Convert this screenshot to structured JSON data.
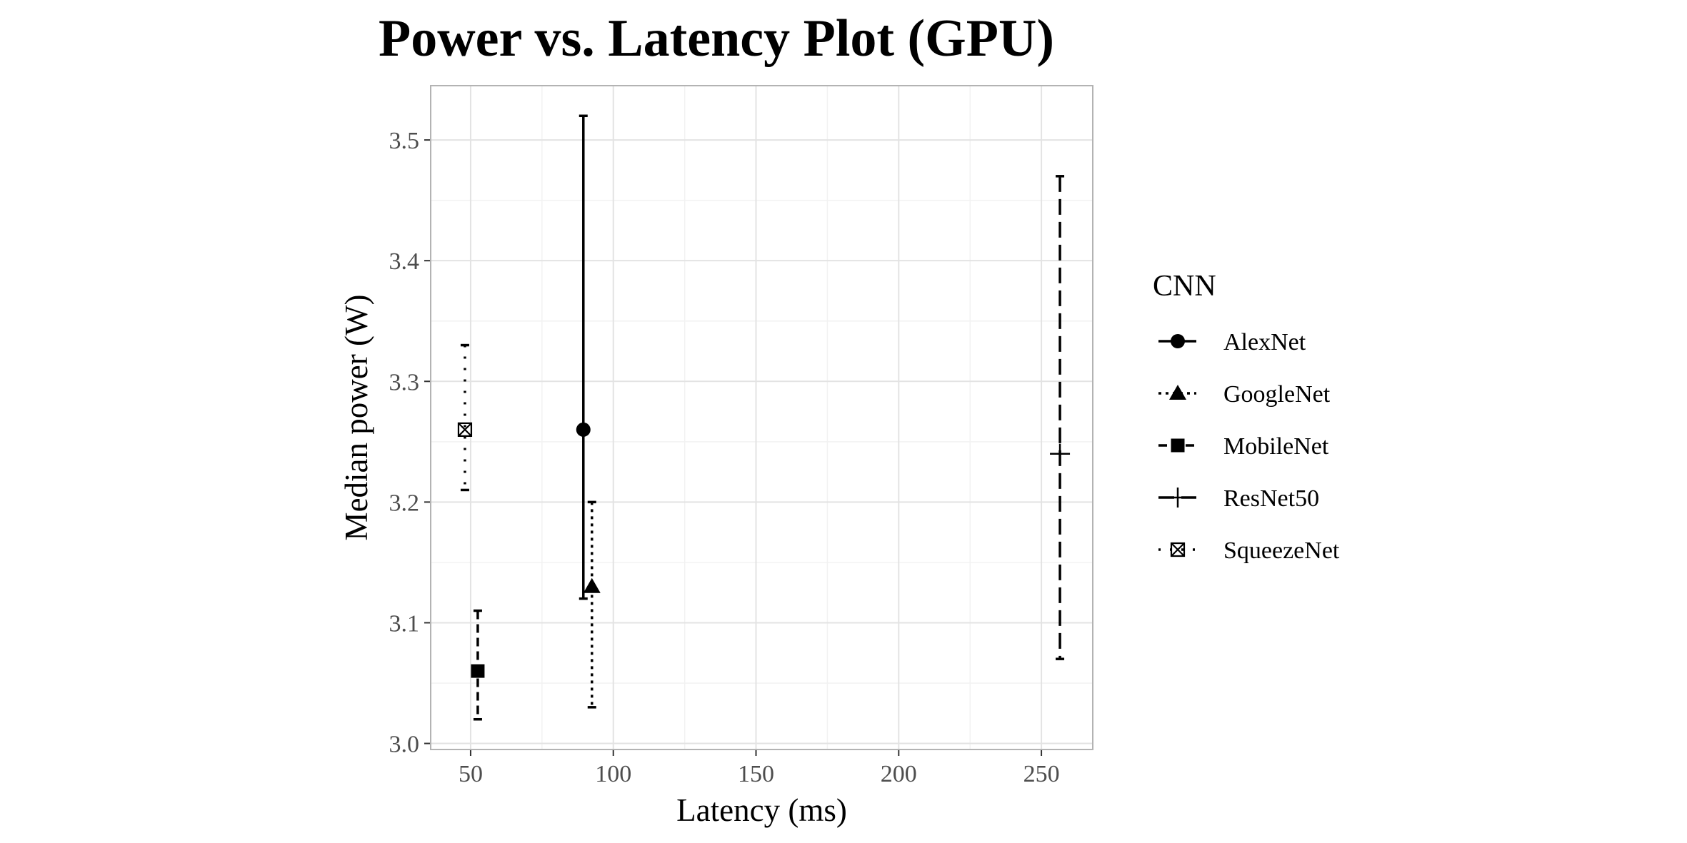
{
  "chart_data": {
    "type": "scatter",
    "title": "Power vs. Latency Plot (GPU)",
    "xlabel": "Latency (ms)",
    "ylabel": "Median power (W)",
    "xlim": [
      36,
      268
    ],
    "ylim": [
      2.995,
      3.545
    ],
    "x_ticks": [
      50,
      100,
      150,
      200,
      250
    ],
    "y_ticks": [
      3.0,
      3.1,
      3.2,
      3.3,
      3.4,
      3.5
    ],
    "x_tick_labels": [
      "50",
      "100",
      "150",
      "200",
      "250"
    ],
    "y_tick_labels": [
      "3.0",
      "3.1",
      "3.2",
      "3.3",
      "3.4",
      "3.5"
    ],
    "grid": true,
    "legend_title": "CNN",
    "legend_position": "right",
    "series": [
      {
        "name": "AlexNet",
        "x": 89.5,
        "y": 3.26,
        "ymin": 3.12,
        "ymax": 3.52,
        "shape": "circle",
        "linetype": "solid"
      },
      {
        "name": "GoogleNet",
        "x": 92.5,
        "y": 3.13,
        "ymin": 3.03,
        "ymax": 3.2,
        "shape": "triangle",
        "linetype": "dotted"
      },
      {
        "name": "MobileNet",
        "x": 52.5,
        "y": 3.06,
        "ymin": 3.02,
        "ymax": 3.11,
        "shape": "square",
        "linetype": "dashed"
      },
      {
        "name": "ResNet50",
        "x": 256.5,
        "y": 3.24,
        "ymin": 3.07,
        "ymax": 3.47,
        "shape": "plus",
        "linetype": "longdash"
      },
      {
        "name": "SqueezeNet",
        "x": 48,
        "y": 3.26,
        "ymin": 3.21,
        "ymax": 3.33,
        "shape": "square-x",
        "linetype": "sparse-dotted"
      }
    ]
  }
}
